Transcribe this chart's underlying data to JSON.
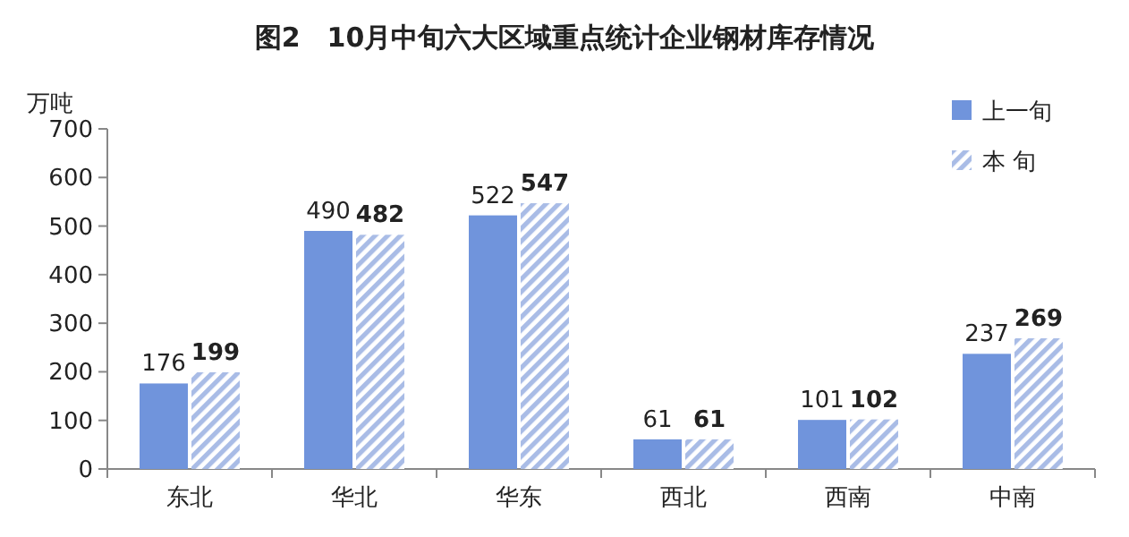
{
  "chart_data": {
    "type": "bar",
    "title": "图2　10月中旬六大区域重点统计企业钢材库存情况",
    "ylabel": "万吨",
    "categories": [
      "东北",
      "华北",
      "华东",
      "西北",
      "西南",
      "中南"
    ],
    "series": [
      {
        "name": "上一旬",
        "color": "#7094dc",
        "values": [
          176,
          490,
          522,
          61,
          101,
          237
        ]
      },
      {
        "name": "本 旬",
        "color": "#a9bce6",
        "values": [
          199,
          482,
          547,
          61,
          102,
          269
        ]
      }
    ],
    "ylim": [
      0,
      700
    ],
    "yticks": [
      0,
      100,
      200,
      300,
      400,
      500,
      600,
      700
    ],
    "data_labels": true,
    "legend": "top right",
    "grid": false
  }
}
